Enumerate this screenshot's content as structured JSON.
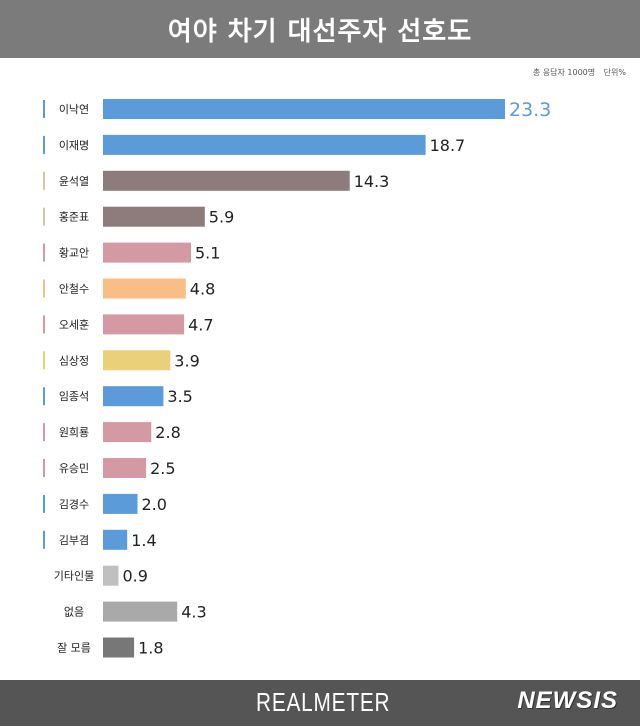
{
  "header": {
    "title": "여야 차기 대선주자 선호도"
  },
  "note": {
    "respondents": "총 응답자 1000명",
    "unit": "단위%"
  },
  "footer": {
    "brand": "REALMETER",
    "publisher": "NEWSIS"
  },
  "colors": {
    "blue": "#5b9bd9",
    "mauve": "#8e7b7b",
    "pink": "#d49aa3",
    "orange": "#f8be86",
    "yellow": "#ebd07a",
    "lightgray": "#c0c0c0",
    "gray": "#a9a9a9",
    "darkgray": "#777777",
    "highlight_value": "#5b9bd9"
  },
  "chart_data": {
    "type": "bar",
    "orientation": "horizontal",
    "title": "여야 차기 대선주자 선호도",
    "unit": "%",
    "categories": [
      "이낙연",
      "이재명",
      "윤석열",
      "홍준표",
      "황교안",
      "안철수",
      "오세훈",
      "심상정",
      "임종석",
      "원희룡",
      "유승민",
      "김경수",
      "김부겸",
      "기타인물",
      "없음",
      "잘 모름"
    ],
    "values": [
      23.3,
      18.7,
      14.3,
      5.9,
      5.1,
      4.8,
      4.7,
      3.9,
      3.5,
      2.8,
      2.5,
      2.0,
      1.4,
      0.9,
      4.3,
      1.8
    ],
    "value_labels": [
      "23.3",
      "18.7",
      "14.3",
      "5.9",
      "5.1",
      "4.8",
      "4.7",
      "3.9",
      "3.5",
      "2.8",
      "2.5",
      "2.0",
      "1.4",
      "0.9",
      "4.3",
      "1.8"
    ],
    "bar_colors": [
      "#5b9bd9",
      "#5b9bd9",
      "#8e7b7b",
      "#8e7b7b",
      "#d49aa3",
      "#f8be86",
      "#d49aa3",
      "#ebd07a",
      "#5b9bd9",
      "#d49aa3",
      "#d49aa3",
      "#5b9bd9",
      "#5b9bd9",
      "#c0c0c0",
      "#a9a9a9",
      "#777777"
    ],
    "marker_colors": [
      "#5b9bd9",
      "#5b9bd9",
      "#d9c3ae",
      "#d9c3ae",
      "#d49aa3",
      "#f8be86",
      "#d49aa3",
      "#ebd07a",
      "#5b9bd9",
      "#d49aa3",
      "#d49aa3",
      "#5b9bd9",
      "#5b9bd9",
      "",
      "",
      ""
    ],
    "highlight_index": 0,
    "xlim": [
      0,
      23.3
    ],
    "grid": false,
    "legend": "none"
  }
}
